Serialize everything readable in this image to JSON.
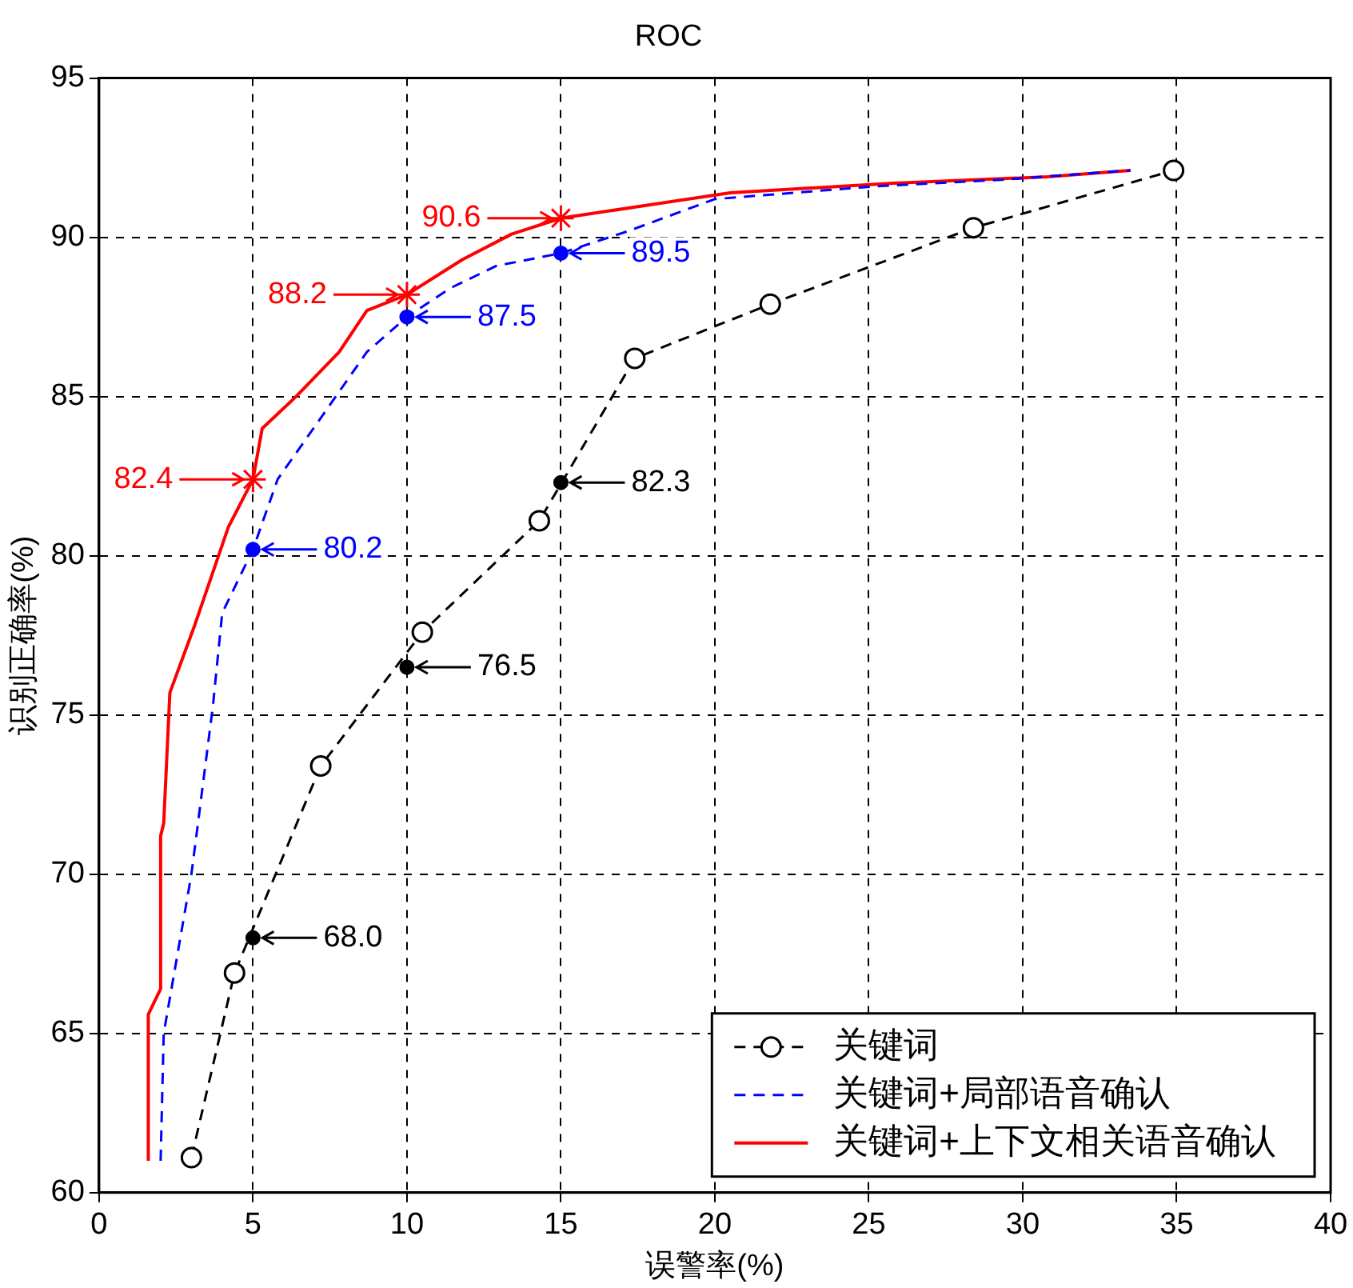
{
  "chart_data": {
    "type": "line",
    "title": "ROC",
    "xlabel": "误警率(%)",
    "ylabel": "识别正确率(%)",
    "xlim": [
      0,
      40
    ],
    "xticks": [
      0,
      5,
      10,
      15,
      20,
      25,
      30,
      35,
      40
    ],
    "ylim": [
      60,
      95
    ],
    "yticks": [
      60,
      65,
      70,
      75,
      80,
      85,
      90,
      95
    ],
    "grid": true,
    "legend": "bottom right",
    "series": [
      {
        "name": "关键词",
        "color": "#000000",
        "marker": "circle",
        "line_style": "dashed",
        "x": [
          3.0,
          4.4,
          7.2,
          10.5,
          14.3,
          17.4,
          21.8,
          28.4,
          34.9
        ],
        "values": [
          61.1,
          66.9,
          73.4,
          77.6,
          81.1,
          86.2,
          87.9,
          90.3,
          92.1
        ]
      },
      {
        "name": "关键词+局部语音确认",
        "color": "#0000ff",
        "marker": "none",
        "line_style": "dashed",
        "x": [
          2.0,
          2.1,
          3.0,
          3.2,
          3.7,
          4.0,
          5,
          5.8,
          7.4,
          8.7,
          10,
          11.4,
          12.9,
          15,
          17.2,
          20,
          25.2,
          29.2,
          33.5
        ],
        "values": [
          61,
          65,
          70,
          71.5,
          75.3,
          78.2,
          80.2,
          82.4,
          84.6,
          86.4,
          87.5,
          88.4,
          89.1,
          89.5,
          90.2,
          91.2,
          91.6,
          91.8,
          92.1
        ]
      },
      {
        "name": "关键词+上下文相关语音确认",
        "color": "#ff0000",
        "marker": "none",
        "line_style": "solid",
        "x": [
          1.6,
          1.6,
          2.0,
          2.0,
          2.1,
          2.3,
          3.1,
          4.2,
          5,
          5.3,
          6.4,
          7.8,
          8.7,
          10,
          11.8,
          13.4,
          15,
          20.5,
          25.8,
          30.8,
          33.5
        ],
        "values": [
          61,
          65.6,
          66.4,
          71.2,
          71.6,
          75.7,
          77.8,
          80.9,
          82.4,
          84.0,
          85.0,
          86.4,
          87.7,
          88.2,
          89.3,
          90.1,
          90.6,
          91.4,
          91.7,
          91.9,
          92.1
        ]
      },
      {
        "type": "scatter",
        "color": "#000000",
        "marker": "circle",
        "x": [
          5,
          10,
          15
        ],
        "values": [
          68.0,
          76.5,
          82.3
        ],
        "value_labels": [
          "68.0",
          "76.5",
          "82.3"
        ]
      },
      {
        "type": "scatter",
        "color": "#0000ff",
        "marker": "circle",
        "x": [
          5,
          10,
          15
        ],
        "values": [
          80.2,
          87.5,
          89.5
        ],
        "value_labels": [
          "80.2",
          "87.5",
          "89.5"
        ]
      },
      {
        "type": "scatter",
        "color": "#ff0000",
        "marker": "cross",
        "x": [
          5,
          10,
          15
        ],
        "values": [
          82.4,
          88.2,
          90.6
        ],
        "value_labels": [
          "82.4",
          "88.2",
          "90.6"
        ]
      }
    ]
  }
}
